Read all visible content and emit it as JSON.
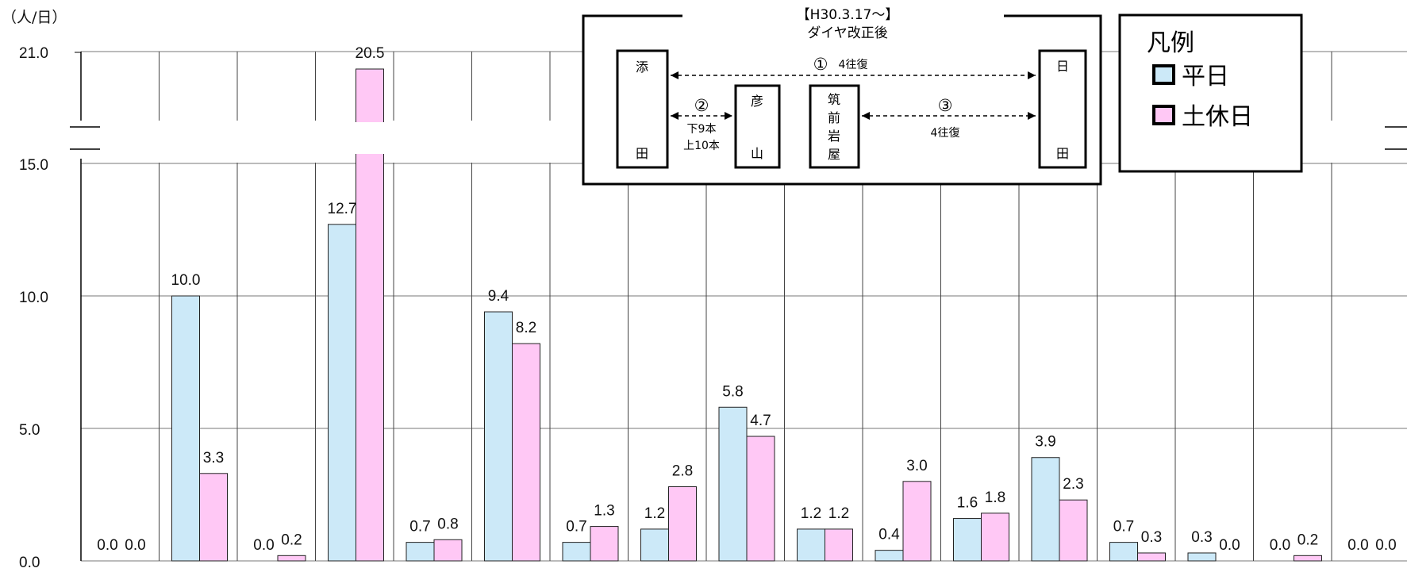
{
  "chart_data": {
    "type": "bar",
    "unit_label": "（人/日）",
    "ylim": [
      0,
      21
    ],
    "axis_break": [
      15.0,
      21.0
    ],
    "y_ticks": [
      "0.0",
      "5.0",
      "10.0",
      "15.0",
      "21.0"
    ],
    "legend": {
      "title": "凡例",
      "items": [
        "平日",
        "土休日"
      ]
    },
    "series": [
      {
        "name": "平日",
        "color": "#cce9f8",
        "values": [
          0.0,
          10.0,
          0.0,
          12.7,
          0.7,
          9.4,
          0.7,
          1.2,
          5.8,
          1.2,
          0.4,
          1.6,
          3.9,
          0.7,
          0.3,
          0.0,
          0.0
        ],
        "labels": [
          "0.0",
          "10.0",
          "0.0",
          "12.7",
          "0.7",
          "9.4",
          "0.7",
          "1.2",
          "5.8",
          "1.2",
          "0.4",
          "1.6",
          "3.9",
          "0.7",
          "0.3",
          "0.0",
          "0.0"
        ]
      },
      {
        "name": "土休日",
        "color": "#ffc8f5",
        "values": [
          0.0,
          3.3,
          0.2,
          20.5,
          0.8,
          8.2,
          1.3,
          2.8,
          4.7,
          1.2,
          3.0,
          1.8,
          2.3,
          0.3,
          0.0,
          0.2,
          0.0
        ],
        "labels": [
          "0.0",
          "3.3",
          "0.2",
          "20.5",
          "0.8",
          "8.2",
          "1.3",
          "2.8",
          "4.7",
          "1.2",
          "3.0",
          "1.8",
          "2.3",
          "0.3",
          "0.0",
          "0.2",
          "0.0"
        ]
      }
    ]
  },
  "inset": {
    "title_line1": "【H30.3.17～】",
    "title_line2": "ダイヤ改正後",
    "stations": {
      "soeda": [
        "添",
        "田"
      ],
      "hikosan": [
        "彦",
        "山"
      ],
      "chikuzen_iwaya": [
        "筑",
        "前",
        "岩",
        "屋"
      ],
      "hita": [
        "日",
        "田"
      ]
    },
    "route1": {
      "num": "①",
      "text": "4往復"
    },
    "route2": {
      "num": "②",
      "down": "下9本",
      "up": "上10本"
    },
    "route3": {
      "num": "③",
      "text": "4往復"
    }
  }
}
